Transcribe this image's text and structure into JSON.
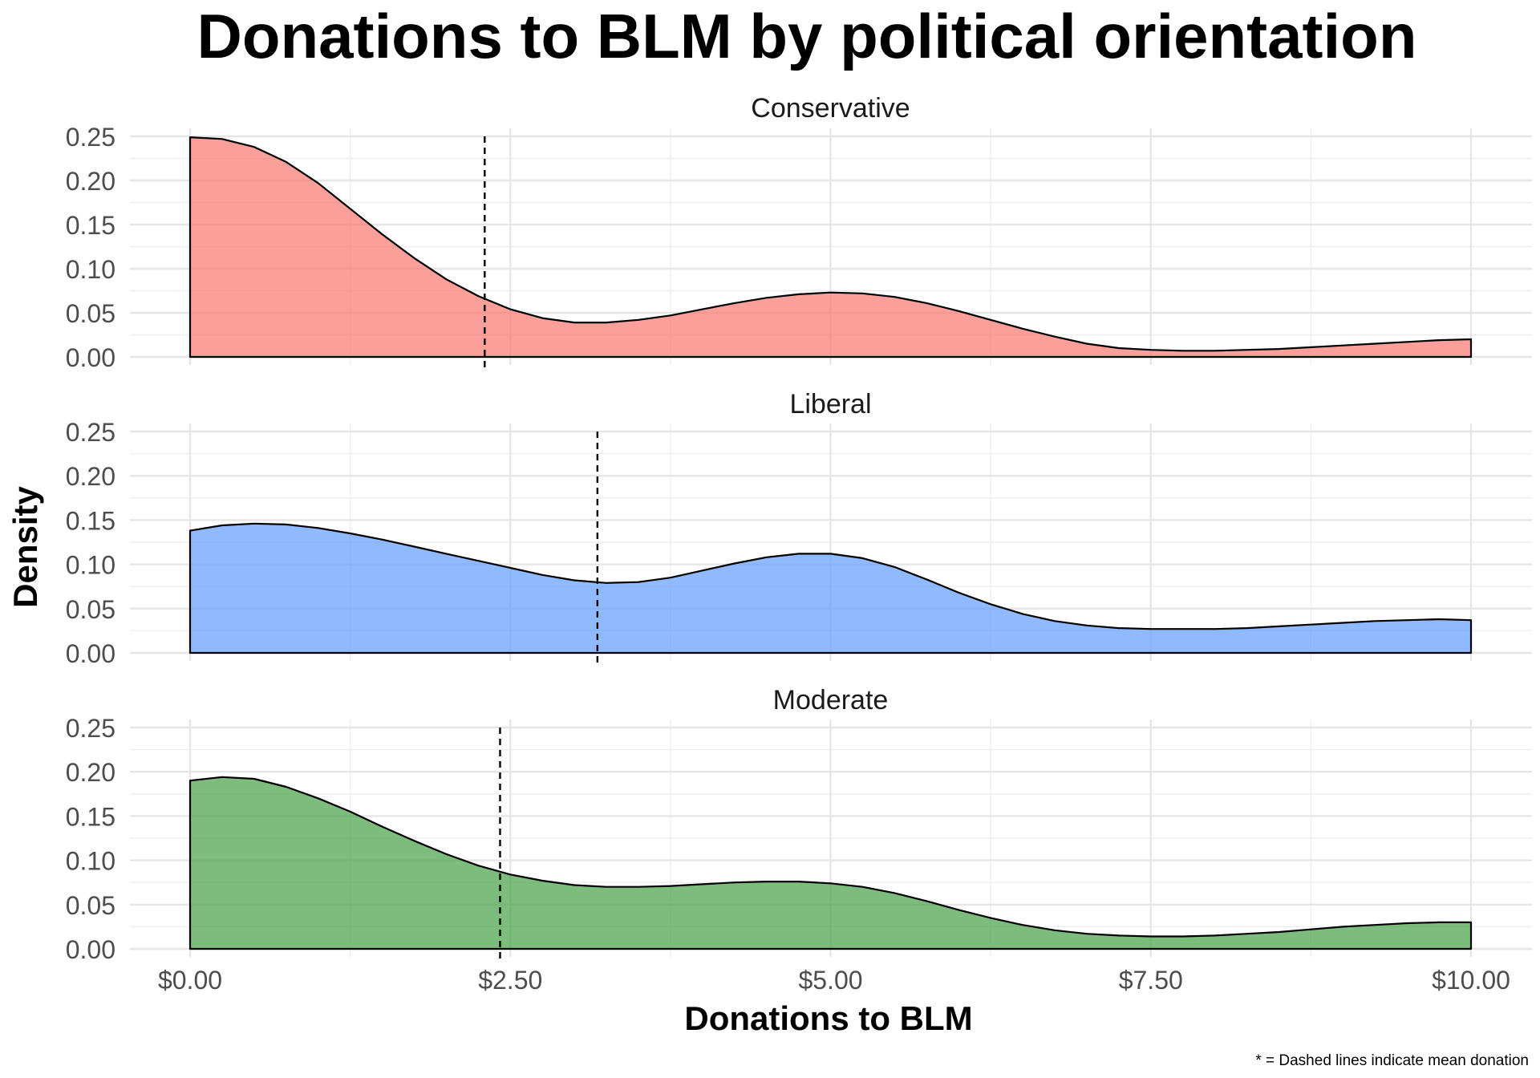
{
  "chart_data": {
    "type": "area",
    "title": "Donations to BLM by political orientation",
    "xlabel": "Donations to BLM",
    "ylabel": "Density",
    "caption": "* = Dashed lines indicate mean donation",
    "xlim": [
      0,
      10
    ],
    "ylim": [
      0,
      0.25
    ],
    "x_ticks": [
      0,
      2.5,
      5,
      7.5,
      10
    ],
    "x_tick_labels": [
      "$0.00",
      "$2.50",
      "$5.00",
      "$7.50",
      "$10.00"
    ],
    "y_ticks": [
      0,
      0.05,
      0.1,
      0.15,
      0.2,
      0.25
    ],
    "y_tick_labels": [
      "0.00",
      "0.05",
      "0.10",
      "0.15",
      "0.20",
      "0.25"
    ],
    "grid": true,
    "legend": "none",
    "panels": [
      {
        "name": "Conservative",
        "color": "#f8766d",
        "mean": 2.3,
        "x": [
          0,
          0.25,
          0.5,
          0.75,
          1,
          1.25,
          1.5,
          1.75,
          2,
          2.25,
          2.5,
          2.75,
          3,
          3.25,
          3.5,
          3.75,
          4,
          4.25,
          4.5,
          4.75,
          5,
          5.25,
          5.5,
          5.75,
          6,
          6.25,
          6.5,
          6.75,
          7,
          7.25,
          7.5,
          7.75,
          8,
          8.25,
          8.5,
          8.75,
          9,
          9.25,
          9.5,
          9.75,
          10
        ],
        "y": [
          0.249,
          0.247,
          0.238,
          0.221,
          0.197,
          0.168,
          0.139,
          0.112,
          0.088,
          0.069,
          0.054,
          0.044,
          0.039,
          0.039,
          0.042,
          0.047,
          0.054,
          0.061,
          0.067,
          0.071,
          0.073,
          0.072,
          0.068,
          0.061,
          0.052,
          0.042,
          0.032,
          0.023,
          0.015,
          0.01,
          0.008,
          0.007,
          0.007,
          0.008,
          0.009,
          0.011,
          0.013,
          0.015,
          0.017,
          0.019,
          0.02
        ]
      },
      {
        "name": "Liberal",
        "color": "#619cff",
        "mean": 3.18,
        "x": [
          0,
          0.25,
          0.5,
          0.75,
          1,
          1.25,
          1.5,
          1.75,
          2,
          2.25,
          2.5,
          2.75,
          3,
          3.25,
          3.5,
          3.75,
          4,
          4.25,
          4.5,
          4.75,
          5,
          5.25,
          5.5,
          5.75,
          6,
          6.25,
          6.5,
          6.75,
          7,
          7.25,
          7.5,
          7.75,
          8,
          8.25,
          8.5,
          8.75,
          9,
          9.25,
          9.5,
          9.75,
          10
        ],
        "y": [
          0.138,
          0.144,
          0.146,
          0.145,
          0.141,
          0.135,
          0.128,
          0.12,
          0.112,
          0.104,
          0.096,
          0.088,
          0.082,
          0.079,
          0.08,
          0.085,
          0.093,
          0.101,
          0.108,
          0.112,
          0.112,
          0.107,
          0.097,
          0.083,
          0.068,
          0.055,
          0.044,
          0.036,
          0.031,
          0.028,
          0.027,
          0.027,
          0.027,
          0.028,
          0.03,
          0.032,
          0.034,
          0.036,
          0.037,
          0.038,
          0.037
        ]
      },
      {
        "name": "Moderate",
        "color": "#44a044",
        "mean": 2.42,
        "x": [
          0,
          0.25,
          0.5,
          0.75,
          1,
          1.25,
          1.5,
          1.75,
          2,
          2.25,
          2.5,
          2.75,
          3,
          3.25,
          3.5,
          3.75,
          4,
          4.25,
          4.5,
          4.75,
          5,
          5.25,
          5.5,
          5.75,
          6,
          6.25,
          6.5,
          6.75,
          7,
          7.25,
          7.5,
          7.75,
          8,
          8.25,
          8.5,
          8.75,
          9,
          9.25,
          9.5,
          9.75,
          10
        ],
        "y": [
          0.19,
          0.194,
          0.192,
          0.183,
          0.17,
          0.155,
          0.138,
          0.122,
          0.107,
          0.094,
          0.084,
          0.077,
          0.072,
          0.07,
          0.07,
          0.071,
          0.073,
          0.075,
          0.076,
          0.076,
          0.074,
          0.07,
          0.063,
          0.054,
          0.044,
          0.035,
          0.027,
          0.021,
          0.017,
          0.015,
          0.014,
          0.014,
          0.015,
          0.017,
          0.019,
          0.022,
          0.025,
          0.027,
          0.029,
          0.03,
          0.03
        ]
      }
    ]
  }
}
